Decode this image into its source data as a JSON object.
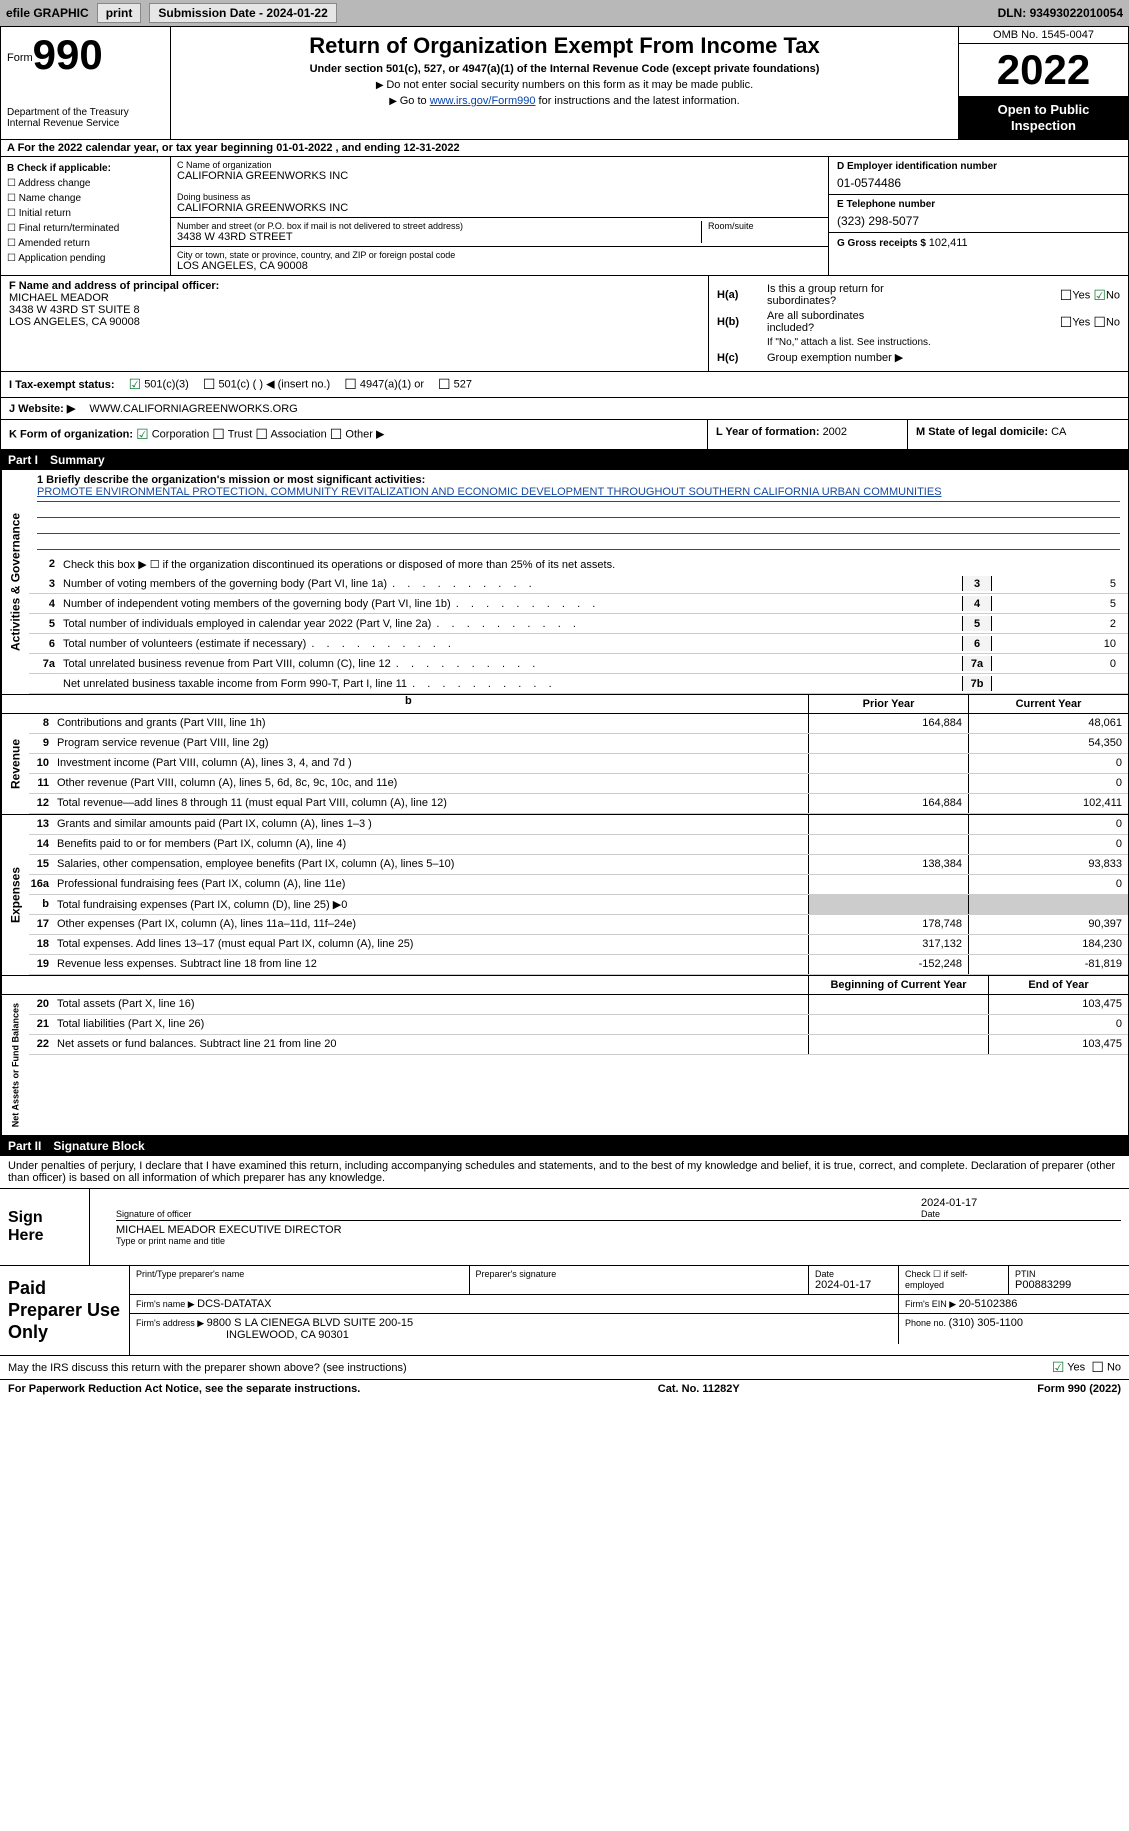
{
  "topbar": {
    "efile": "efile GRAPHIC",
    "print": "print",
    "subdate_label": "Submission Date - ",
    "subdate": "2024-01-22",
    "dln_label": "DLN: ",
    "dln": "93493022010054"
  },
  "header": {
    "form_word": "Form",
    "form_num": "990",
    "dept": "Department of the Treasury",
    "irs": "Internal Revenue Service",
    "title": "Return of Organization Exempt From Income Tax",
    "subtitle": "Under section 501(c), 527, or 4947(a)(1) of the Internal Revenue Code (except private foundations)",
    "note1": "Do not enter social security numbers on this form as it may be made public.",
    "note2_pre": "Go to ",
    "note2_link": "www.irs.gov/Form990",
    "note2_post": " for instructions and the latest information.",
    "omb": "OMB No. 1545-0047",
    "year": "2022",
    "inspect1": "Open to Public",
    "inspect2": "Inspection"
  },
  "rowA": {
    "pre": "A For the 2022 calendar year, or tax year beginning ",
    "begin": "01-01-2022",
    "mid": " , and ending ",
    "end": "12-31-2022"
  },
  "colB": {
    "title": "B Check if applicable:",
    "opts": [
      "Address change",
      "Name change",
      "Initial return",
      "Final return/terminated",
      "Amended return",
      "Application pending"
    ]
  },
  "colC": {
    "name_label": "C Name of organization",
    "name": "CALIFORNIA GREENWORKS INC",
    "dba_label": "Doing business as",
    "dba": "CALIFORNIA GREENWORKS INC",
    "street_label": "Number and street (or P.O. box if mail is not delivered to street address)",
    "room_label": "Room/suite",
    "street": "3438 W 43RD STREET",
    "city_label": "City or town, state or province, country, and ZIP or foreign postal code",
    "city": "LOS ANGELES, CA  90008"
  },
  "colD": {
    "ein_label": "D Employer identification number",
    "ein": "01-0574486",
    "tel_label": "E Telephone number",
    "tel": "(323) 298-5077",
    "gross_label": "G Gross receipts $ ",
    "gross": "102,411"
  },
  "colF": {
    "label": "F Name and address of principal officer:",
    "name": "MICHAEL MEADOR",
    "addr1": "3438 W 43RD ST SUITE 8",
    "addr2": "LOS ANGELES, CA  90008"
  },
  "colH": {
    "ha_label": "H(a)",
    "ha_txt1": "Is this a group return for",
    "ha_txt2": "subordinates?",
    "hb_label": "H(b)",
    "hb_txt1": "Are all subordinates",
    "hb_txt2": "included?",
    "hb_note": "If \"No,\" attach a list. See instructions.",
    "hc_label": "H(c)",
    "hc_txt": "Group exemption number ▶",
    "yes": "Yes",
    "no": "No"
  },
  "rowI": {
    "label": "I   Tax-exempt status:",
    "o1": "501(c)(3)",
    "o2": "501(c) (  ) ◀ (insert no.)",
    "o3": "4947(a)(1) or",
    "o4": "527"
  },
  "rowJ": {
    "label": "J   Website: ▶",
    "val": "WWW.CALIFORNIAGREENWORKS.ORG"
  },
  "rowK": {
    "klabel": "K Form of organization:",
    "k1": "Corporation",
    "k2": "Trust",
    "k3": "Association",
    "k4": "Other ▶",
    "llabel": "L Year of formation: ",
    "lval": "2002",
    "mlabel": "M State of legal domicile: ",
    "mval": "CA"
  },
  "part1": {
    "hdr_num": "Part I",
    "hdr_txt": "Summary",
    "side_ag": "Activities & Governance",
    "side_rev": "Revenue",
    "side_exp": "Expenses",
    "side_na": "Net Assets or Fund Balances",
    "l1_label": "1   Briefly describe the organization's mission or most significant activities:",
    "l1_text": "PROMOTE ENVIRONMENTAL PROTECTION, COMMUNITY REVITALIZATION AND ECONOMIC DEVELOPMENT THROUGHOUT SOUTHERN CALIFORNIA URBAN COMMUNITIES",
    "l2": "Check this box ▶ ☐  if the organization discontinued its operations or disposed of more than 25% of its net assets.",
    "lines_ag": [
      {
        "n": "3",
        "d": "Number of voting members of the governing body (Part VI, line 1a)",
        "box": "3",
        "v": "5"
      },
      {
        "n": "4",
        "d": "Number of independent voting members of the governing body (Part VI, line 1b)",
        "box": "4",
        "v": "5"
      },
      {
        "n": "5",
        "d": "Total number of individuals employed in calendar year 2022 (Part V, line 2a)",
        "box": "5",
        "v": "2"
      },
      {
        "n": "6",
        "d": "Total number of volunteers (estimate if necessary)",
        "box": "6",
        "v": "10"
      },
      {
        "n": "7a",
        "d": "Total unrelated business revenue from Part VIII, column (C), line 12",
        "box": "7a",
        "v": "0"
      },
      {
        "n": "",
        "d": "Net unrelated business taxable income from Form 990-T, Part I, line 11",
        "box": "7b",
        "v": ""
      }
    ],
    "hdr_prior": "Prior Year",
    "hdr_curr": "Current Year",
    "lines_rev": [
      {
        "n": "8",
        "d": "Contributions and grants (Part VIII, line 1h)",
        "c1": "164,884",
        "c2": "48,061"
      },
      {
        "n": "9",
        "d": "Program service revenue (Part VIII, line 2g)",
        "c1": "",
        "c2": "54,350"
      },
      {
        "n": "10",
        "d": "Investment income (Part VIII, column (A), lines 3, 4, and 7d )",
        "c1": "",
        "c2": "0"
      },
      {
        "n": "11",
        "d": "Other revenue (Part VIII, column (A), lines 5, 6d, 8c, 9c, 10c, and 11e)",
        "c1": "",
        "c2": "0"
      },
      {
        "n": "12",
        "d": "Total revenue—add lines 8 through 11 (must equal Part VIII, column (A), line 12)",
        "c1": "164,884",
        "c2": "102,411"
      }
    ],
    "lines_exp": [
      {
        "n": "13",
        "d": "Grants and similar amounts paid (Part IX, column (A), lines 1–3 )",
        "c1": "",
        "c2": "0"
      },
      {
        "n": "14",
        "d": "Benefits paid to or for members (Part IX, column (A), line 4)",
        "c1": "",
        "c2": "0"
      },
      {
        "n": "15",
        "d": "Salaries, other compensation, employee benefits (Part IX, column (A), lines 5–10)",
        "c1": "138,384",
        "c2": "93,833"
      },
      {
        "n": "16a",
        "d": "Professional fundraising fees (Part IX, column (A), line 11e)",
        "c1": "",
        "c2": "0"
      },
      {
        "n": "b",
        "d": "Total fundraising expenses (Part IX, column (D), line 25) ▶0",
        "c1": "shade",
        "c2": "shade"
      },
      {
        "n": "17",
        "d": "Other expenses (Part IX, column (A), lines 11a–11d, 11f–24e)",
        "c1": "178,748",
        "c2": "90,397"
      },
      {
        "n": "18",
        "d": "Total expenses. Add lines 13–17 (must equal Part IX, column (A), line 25)",
        "c1": "317,132",
        "c2": "184,230"
      },
      {
        "n": "19",
        "d": "Revenue less expenses. Subtract line 18 from line 12",
        "c1": "-152,248",
        "c2": "-81,819"
      }
    ],
    "hdr_beg": "Beginning of Current Year",
    "hdr_end": "End of Year",
    "lines_na": [
      {
        "n": "20",
        "d": "Total assets (Part X, line 16)",
        "c1": "",
        "c2": "103,475"
      },
      {
        "n": "21",
        "d": "Total liabilities (Part X, line 26)",
        "c1": "",
        "c2": "0"
      },
      {
        "n": "22",
        "d": "Net assets or fund balances. Subtract line 21 from line 20",
        "c1": "",
        "c2": "103,475"
      }
    ]
  },
  "part2": {
    "hdr_num": "Part II",
    "hdr_txt": "Signature Block",
    "intro": "Under penalties of perjury, I declare that I have examined this return, including accompanying schedules and statements, and to the best of my knowledge and belief, it is true, correct, and complete. Declaration of preparer (other than officer) is based on all information of which preparer has any knowledge.",
    "sign_here": "Sign Here",
    "sig_officer": "Signature of officer",
    "sig_date_label": "Date",
    "sig_date": "2024-01-17",
    "sig_name": "MICHAEL MEADOR  EXECUTIVE DIRECTOR",
    "sig_name_label": "Type or print name and title",
    "prep_title": "Paid Preparer Use Only",
    "prep_name_label": "Print/Type preparer's name",
    "prep_sig_label": "Preparer's signature",
    "prep_date_label": "Date",
    "prep_date": "2024-01-17",
    "prep_self_label": "Check ☐ if self-employed",
    "prep_ptin_label": "PTIN",
    "prep_ptin": "P00883299",
    "firm_name_label": "Firm's name    ▶ ",
    "firm_name": "DCS-DATATAX",
    "firm_ein_label": "Firm's EIN ▶ ",
    "firm_ein": "20-5102386",
    "firm_addr_label": "Firm's address ▶ ",
    "firm_addr1": "9800 S LA CIENEGA BLVD SUITE 200-15",
    "firm_addr2": "INGLEWOOD, CA  90301",
    "firm_phone_label": "Phone no. ",
    "firm_phone": "(310) 305-1100",
    "discuss": "May the IRS discuss this return with the preparer shown above? (see instructions)",
    "yes": "Yes",
    "no": "No"
  },
  "footer": {
    "pra": "For Paperwork Reduction Act Notice, see the separate instructions.",
    "cat": "Cat. No. 11282Y",
    "form": "Form 990 (2022)"
  }
}
